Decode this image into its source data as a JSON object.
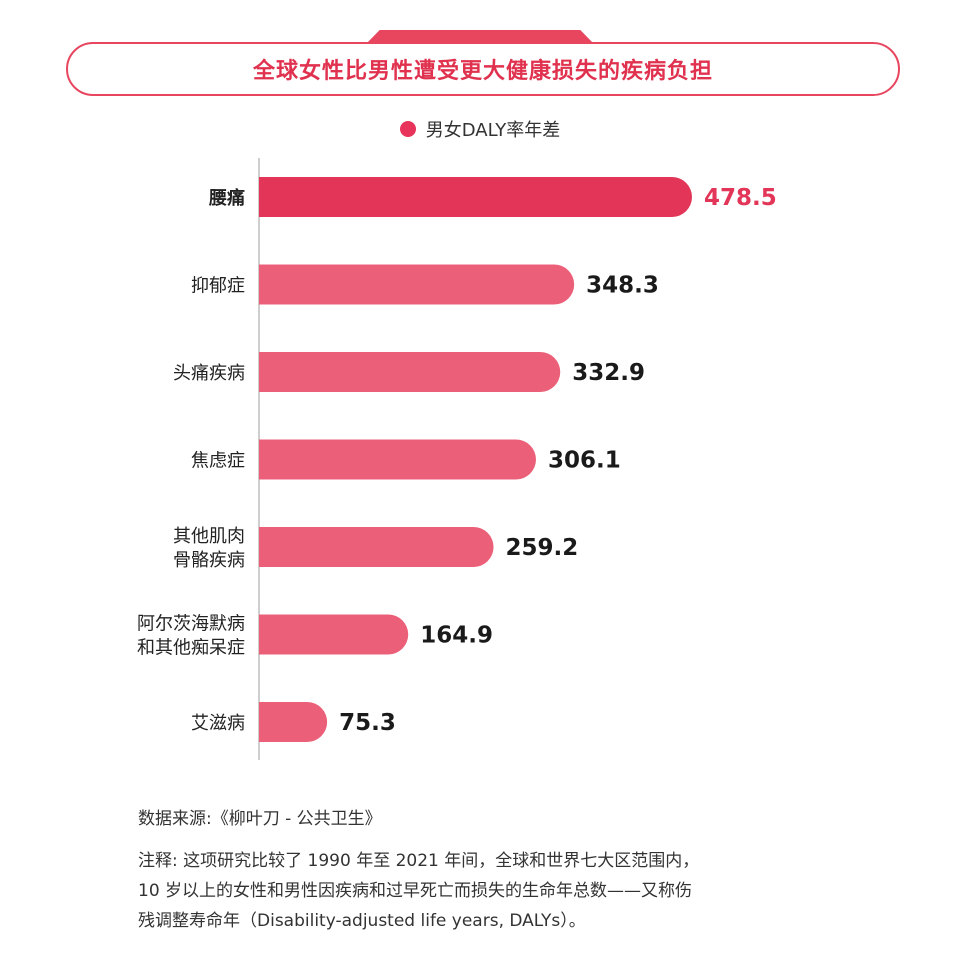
{
  "title": "全球女性比男性遭受更大健康损失的疾病负担",
  "legend": {
    "label": "男女DALY率年差",
    "color": "#e8345a"
  },
  "source": "数据来源:《柳叶刀 - 公共卫生》",
  "note_lines": [
    "注释: 这项研究比较了 1990 年至 2021 年间，全球和世界七大区范围内，",
    "10 岁以上的女性和男性因疾病和过早死亡而损失的生命年总数——又称伤",
    "残调整寿命年（Disability-adjusted life years, DALYs）。"
  ],
  "colors": {
    "highlight": "#e23557",
    "bar": "#ec5f79",
    "highlight_label": "#e23557",
    "label": "#1a1a1a"
  },
  "chart_data": {
    "type": "bar",
    "orientation": "horizontal",
    "categories": [
      [
        "腰痛"
      ],
      [
        "抑郁症"
      ],
      [
        "头痛疾病"
      ],
      [
        "焦虑症"
      ],
      [
        "其他肌肉",
        "骨骼疾病"
      ],
      [
        "阿尔茨海默病",
        "和其他痴呆症"
      ],
      [
        "艾滋病"
      ]
    ],
    "values": [
      478.5,
      348.3,
      332.9,
      306.1,
      259.2,
      164.9,
      75.3
    ],
    "value_labels": [
      "478.5",
      "348.3",
      "332.9",
      "306.1",
      "259.2",
      "164.9",
      "75.3"
    ],
    "highlight_index": 0,
    "xlim": [
      0,
      478.5
    ],
    "grid": false
  }
}
